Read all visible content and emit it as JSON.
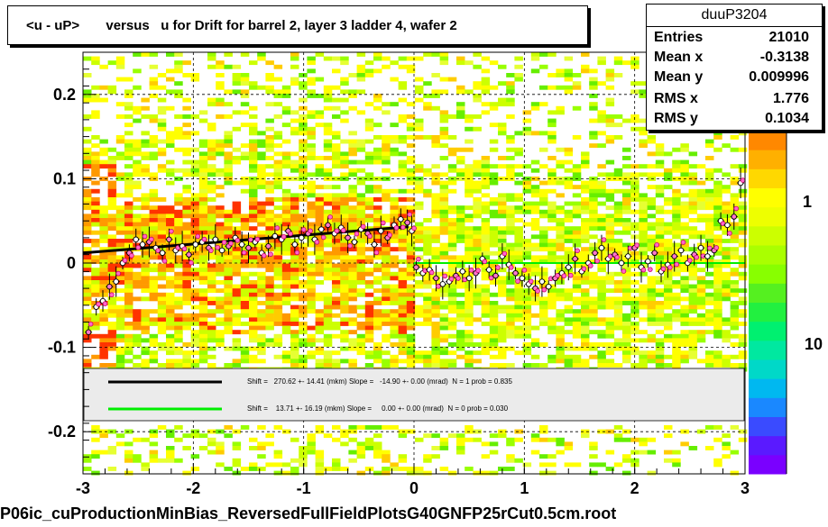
{
  "title": "<u - uP>       versus   u for Drift for barrel 2, layer 3 ladder 4, wafer 2",
  "stats": {
    "name": "duuP3204",
    "rows": [
      {
        "label": "Entries",
        "value": "21010"
      },
      {
        "label": "Mean x",
        "value": "-0.3138"
      },
      {
        "label": "Mean y",
        "value": "0.009996"
      },
      {
        "label": "RMS x",
        "value": "1.776"
      },
      {
        "label": "RMS y",
        "value": "0.1034"
      }
    ]
  },
  "fit_legend": [
    {
      "color": "#000000",
      "text": "Shift =   270.62 +- 14.41 (mkm) Slope =   -14.90 +- 0.00 (mrad)  N = 1 prob = 0.835"
    },
    {
      "color": "#00ee00",
      "text": "Shift =    13.71 +- 16.19 (mkm) Slope =     0.00 +- 0.00 (mrad)  N = 0 prob = 0.030"
    }
  ],
  "footer": "P06ic_cuProductionMinBias_ReversedFullFieldPlotsG40GNFP25rCut0.5cm.root",
  "chart_data": {
    "type": "heatmap",
    "xlim": [
      -3,
      3
    ],
    "ylim": [
      -0.25,
      0.25
    ],
    "x_ticks": [
      "-3",
      "-2",
      "-1",
      "0",
      "1",
      "2",
      "3"
    ],
    "y_ticks": [
      "-0.2",
      "-0.1",
      "0",
      "0.1",
      "0.2"
    ],
    "z_ticks": [
      "1",
      "10"
    ],
    "grid": true,
    "profile_left": [
      [
        -2.95,
        -0.082
      ],
      [
        -2.88,
        -0.052
      ],
      [
        -2.82,
        -0.045
      ],
      [
        -2.76,
        -0.028
      ],
      [
        -2.7,
        -0.022
      ],
      [
        -2.64,
        0.0
      ],
      [
        -2.58,
        0.012
      ],
      [
        -2.52,
        0.028
      ],
      [
        -2.46,
        0.022
      ],
      [
        -2.4,
        0.025
      ],
      [
        -2.34,
        0.018
      ],
      [
        -2.28,
        0.012
      ],
      [
        -2.22,
        0.028
      ],
      [
        -2.16,
        0.015
      ],
      [
        -2.1,
        0.02
      ],
      [
        -2.04,
        0.01
      ],
      [
        -1.98,
        0.022
      ],
      [
        -1.92,
        0.025
      ],
      [
        -1.86,
        0.018
      ],
      [
        -1.8,
        0.028
      ],
      [
        -1.74,
        0.015
      ],
      [
        -1.68,
        0.02
      ],
      [
        -1.62,
        0.03
      ],
      [
        -1.56,
        0.022
      ],
      [
        -1.5,
        0.018
      ],
      [
        -1.44,
        0.025
      ],
      [
        -1.38,
        0.012
      ],
      [
        -1.32,
        0.02
      ],
      [
        -1.26,
        0.032
      ],
      [
        -1.2,
        0.028
      ],
      [
        -1.14,
        0.038
      ],
      [
        -1.08,
        0.022
      ],
      [
        -1.02,
        0.03
      ],
      [
        -0.96,
        0.035
      ],
      [
        -0.9,
        0.028
      ],
      [
        -0.84,
        0.04
      ],
      [
        -0.78,
        0.045
      ],
      [
        -0.72,
        0.035
      ],
      [
        -0.66,
        0.042
      ],
      [
        -0.6,
        0.03
      ],
      [
        -0.54,
        0.025
      ],
      [
        -0.48,
        0.04
      ],
      [
        -0.42,
        0.035
      ],
      [
        -0.36,
        0.022
      ],
      [
        -0.3,
        0.038
      ],
      [
        -0.24,
        0.03
      ],
      [
        -0.18,
        0.045
      ],
      [
        -0.12,
        0.052
      ],
      [
        -0.06,
        0.048
      ],
      [
        -0.02,
        0.038
      ]
    ],
    "profile_right": [
      [
        0.02,
        -0.005
      ],
      [
        0.08,
        -0.012
      ],
      [
        0.14,
        -0.008
      ],
      [
        0.2,
        -0.018
      ],
      [
        0.26,
        -0.025
      ],
      [
        0.32,
        -0.022
      ],
      [
        0.38,
        -0.015
      ],
      [
        0.44,
        -0.01
      ],
      [
        0.5,
        -0.018
      ],
      [
        0.56,
        -0.012
      ],
      [
        0.62,
        0.005
      ],
      [
        0.68,
        -0.008
      ],
      [
        0.74,
        -0.015
      ],
      [
        0.8,
        0.008
      ],
      [
        0.86,
        -0.002
      ],
      [
        0.92,
        -0.012
      ],
      [
        0.98,
        -0.018
      ],
      [
        1.04,
        -0.025
      ],
      [
        1.1,
        -0.03
      ],
      [
        1.16,
        -0.022
      ],
      [
        1.22,
        -0.028
      ],
      [
        1.28,
        -0.018
      ],
      [
        1.34,
        -0.012
      ],
      [
        1.4,
        -0.005
      ],
      [
        1.46,
        0.005
      ],
      [
        1.52,
        -0.01
      ],
      [
        1.58,
        0.0
      ],
      [
        1.64,
        0.012
      ],
      [
        1.7,
        0.018
      ],
      [
        1.76,
        0.005
      ],
      [
        1.82,
        0.01
      ],
      [
        1.88,
        0.0
      ],
      [
        1.94,
        0.008
      ],
      [
        2.0,
        0.018
      ],
      [
        2.06,
        -0.005
      ],
      [
        2.12,
        0.002
      ],
      [
        2.18,
        0.012
      ],
      [
        2.24,
        -0.01
      ],
      [
        2.3,
        -0.002
      ],
      [
        2.36,
        0.008
      ],
      [
        2.42,
        0.015
      ],
      [
        2.48,
        0.0
      ],
      [
        2.54,
        0.01
      ],
      [
        2.6,
        0.018
      ],
      [
        2.66,
        0.008
      ],
      [
        2.72,
        0.015
      ],
      [
        2.78,
        0.05
      ],
      [
        2.84,
        0.045
      ],
      [
        2.9,
        0.055
      ],
      [
        2.96,
        0.095
      ]
    ],
    "fit_black": {
      "x": [
        -3.0,
        -0.05
      ],
      "y": [
        0.012,
        0.043
      ]
    },
    "fit_green": {
      "x": [
        0.0,
        3.0
      ],
      "y": [
        0.0,
        0.0
      ]
    }
  }
}
